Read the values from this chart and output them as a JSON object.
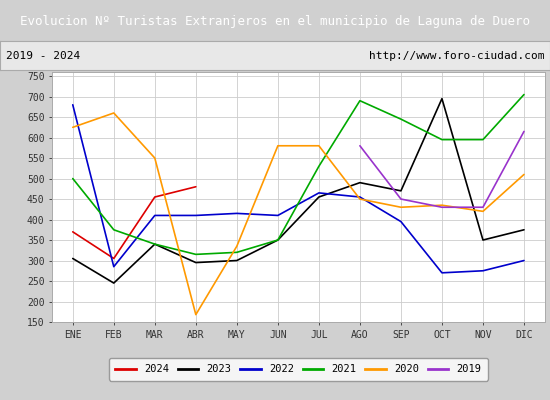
{
  "title": "Evolucion Nº Turistas Extranjeros en el municipio de Laguna de Duero",
  "subtitle_left": "2019 - 2024",
  "subtitle_right": "http://www.foro-ciudad.com",
  "title_bg": "#4472c4",
  "title_color": "#ffffff",
  "subtitle_bg": "#f0f0f0",
  "subtitle_border": "#aaaaaa",
  "subtitle_color": "#000000",
  "x_labels": [
    "ENE",
    "FEB",
    "MAR",
    "ABR",
    "MAY",
    "JUN",
    "JUL",
    "AGO",
    "SEP",
    "OCT",
    "NOV",
    "DIC"
  ],
  "ylim": [
    150,
    760
  ],
  "yticks": [
    150,
    200,
    250,
    300,
    350,
    400,
    450,
    500,
    550,
    600,
    650,
    700,
    750
  ],
  "series": {
    "2024": {
      "color": "#dd0000",
      "values": [
        370,
        305,
        455,
        480,
        null,
        null,
        null,
        null,
        null,
        null,
        null,
        null
      ]
    },
    "2023": {
      "color": "#000000",
      "values": [
        305,
        245,
        340,
        295,
        300,
        350,
        455,
        490,
        470,
        695,
        350,
        375
      ]
    },
    "2022": {
      "color": "#0000cc",
      "values": [
        680,
        285,
        410,
        410,
        415,
        410,
        465,
        455,
        395,
        270,
        275,
        300
      ]
    },
    "2021": {
      "color": "#00aa00",
      "values": [
        500,
        375,
        340,
        315,
        320,
        350,
        530,
        690,
        645,
        595,
        595,
        705
      ]
    },
    "2020": {
      "color": "#ff9900",
      "values": [
        625,
        660,
        550,
        168,
        335,
        580,
        580,
        450,
        430,
        435,
        420,
        510
      ]
    },
    "2019": {
      "color": "#9933cc",
      "values": [
        null,
        null,
        null,
        null,
        null,
        null,
        null,
        580,
        450,
        430,
        430,
        615
      ]
    }
  },
  "legend_order": [
    "2024",
    "2023",
    "2022",
    "2021",
    "2020",
    "2019"
  ],
  "outer_bg": "#d0d0d0",
  "plot_bg": "#e8e8e8",
  "inner_bg": "#ffffff",
  "grid_color": "#cccccc"
}
